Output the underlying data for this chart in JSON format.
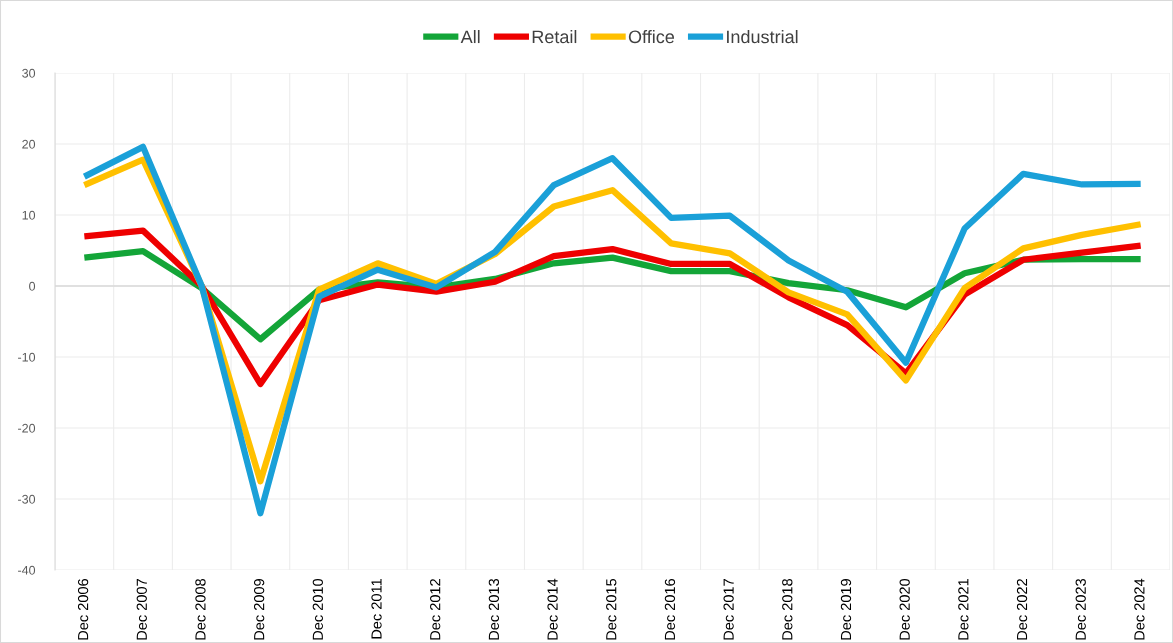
{
  "chart_data": {
    "type": "line",
    "categories": [
      "Dec 2006",
      "Dec 2007",
      "Dec 2008",
      "Dec 2009",
      "Dec 2010",
      "Dec 2011",
      "Dec 2012",
      "Dec 2013",
      "Dec 2014",
      "Dec 2015",
      "Dec 2016",
      "Dec 2017",
      "Dec 2018",
      "Dec 2019",
      "Dec 2020",
      "Dec 2021",
      "Dec 2022",
      "Dec 2023",
      "Dec 2024"
    ],
    "series": [
      {
        "name": "All",
        "color": "#13a538",
        "values": [
          4.0,
          4.9,
          -0.3,
          -7.5,
          -0.5,
          0.5,
          -0.2,
          1.0,
          3.2,
          4.0,
          2.1,
          2.1,
          0.4,
          -0.6,
          -3.0,
          1.8,
          3.7,
          3.8,
          3.8
        ]
      },
      {
        "name": "Retail",
        "color": "#ee0000",
        "values": [
          7.0,
          7.8,
          0.0,
          -13.8,
          -2.0,
          0.2,
          -0.8,
          0.6,
          4.2,
          5.2,
          3.1,
          3.1,
          -1.6,
          -5.5,
          -12.3,
          -1.2,
          3.7,
          4.7,
          5.7
        ]
      },
      {
        "name": "Office",
        "color": "#ffc000",
        "values": [
          14.2,
          17.8,
          0.0,
          -27.5,
          -0.5,
          3.2,
          0.3,
          4.5,
          11.2,
          13.5,
          6.0,
          4.6,
          -0.9,
          -4.0,
          -13.3,
          -0.3,
          5.3,
          7.2,
          8.7
        ]
      },
      {
        "name": "Industrial",
        "color": "#1aa0d8",
        "values": [
          15.4,
          19.6,
          0.0,
          -32.0,
          -1.5,
          2.3,
          -0.2,
          4.8,
          14.2,
          18.0,
          9.6,
          9.9,
          3.6,
          -0.8,
          -10.8,
          8.1,
          15.8,
          14.3,
          14.4
        ]
      }
    ],
    "ylim": [
      -40,
      30
    ],
    "yticks": [
      -40,
      -30,
      -20,
      -10,
      0,
      10,
      20,
      30
    ],
    "grid": true,
    "legend": "top",
    "marker": "none",
    "line_style": "solid"
  }
}
